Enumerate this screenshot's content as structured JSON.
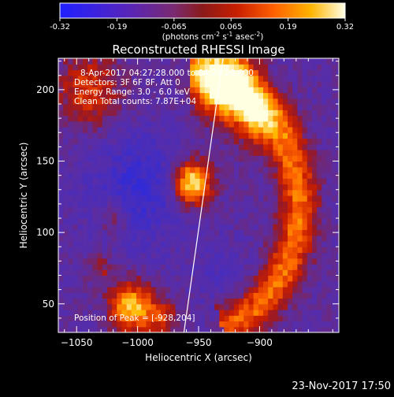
{
  "colorbar": {
    "ticks": [
      "-0.32",
      "-0.19",
      "-0.065",
      "0.065",
      "0.19",
      "0.32"
    ],
    "units_prefix": "(photons cm",
    "units_sup1": "-2",
    "units_mid1": " s",
    "units_sup2": "-1",
    "units_mid2": " asec",
    "units_sup3": "-2",
    "units_suffix": ")"
  },
  "chart_data": {
    "type": "heatmap",
    "title": "Reconstructed RHESSI Image",
    "xlabel": "Heliocentric X (arcsec)",
    "ylabel": "Heliocentric Y (arcsec)",
    "xlim": [
      -1065,
      -835
    ],
    "ylim": [
      30,
      222
    ],
    "x_ticks": [
      -1050,
      -1000,
      -950,
      -900
    ],
    "x_tick_labels": [
      "−1050",
      "−1000",
      "−950",
      "−900"
    ],
    "y_ticks": [
      50,
      100,
      150,
      200
    ],
    "y_tick_labels": [
      "50",
      "100",
      "150",
      "200"
    ],
    "color_range": [
      -0.32,
      0.32
    ],
    "limb_line": [
      [
        -962,
        30
      ],
      [
        -930,
        222
      ]
    ],
    "peak": [
      -928,
      204
    ],
    "annotations": [
      "8-Apr-2017 04:27:28.000 to 04:29:28.000",
      "Detectors: 3F 6F 8F, Att 0",
      "Energy Range: 3.0 - 6.0 keV",
      "Clean    Total counts: 7.87E+04",
      "Position of Peak = [-928,204]"
    ]
  },
  "footer": {
    "timestamp": "23-Nov-2017 17:50"
  }
}
